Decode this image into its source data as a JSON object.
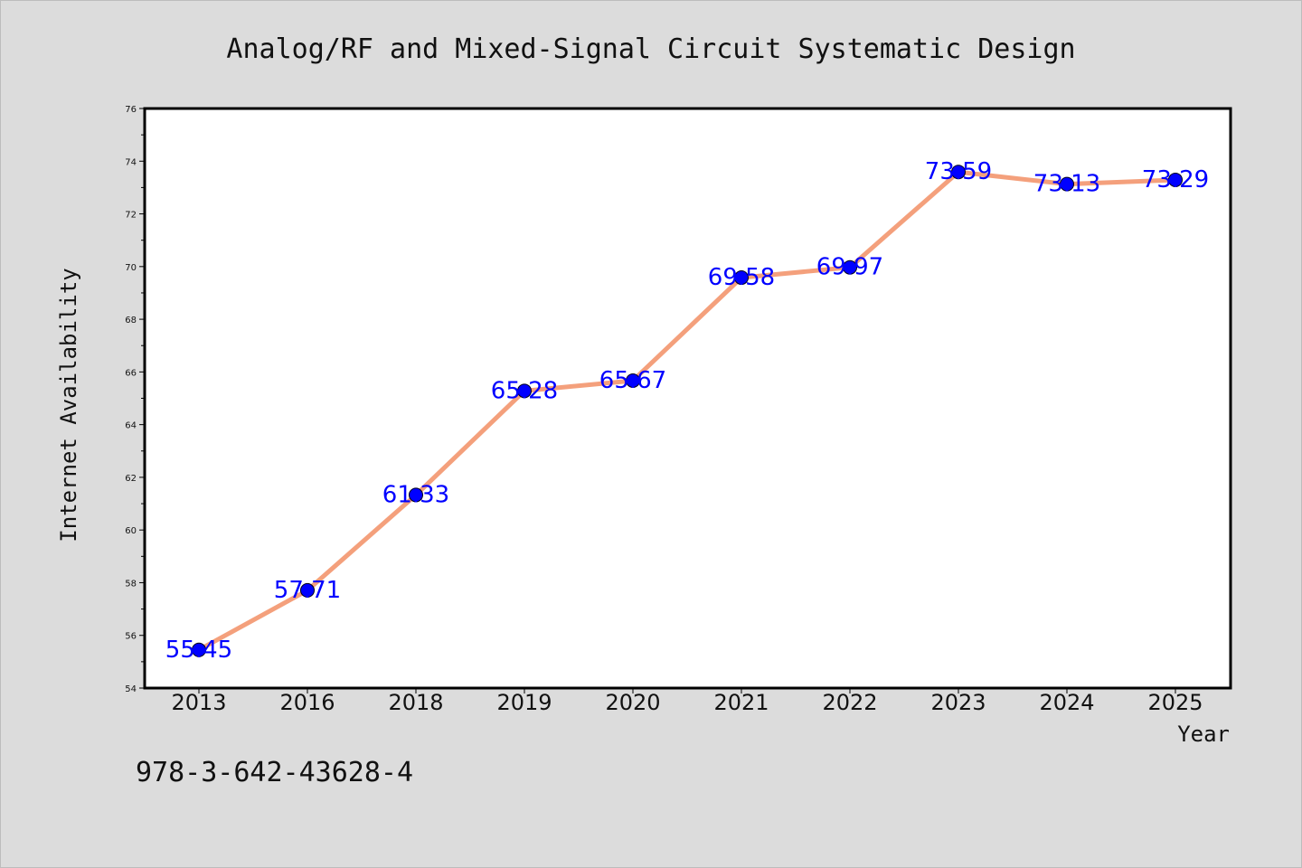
{
  "chart_data": {
    "type": "line",
    "title": "Analog/RF and Mixed-Signal Circuit Systematic Design",
    "xlabel": "Year",
    "ylabel": "Internet Availability",
    "categories": [
      "2013",
      "2016",
      "2018",
      "2019",
      "2020",
      "2021",
      "2022",
      "2023",
      "2024",
      "2025"
    ],
    "series": [
      {
        "values": [
          55.45,
          57.71,
          61.33,
          65.28,
          65.67,
          69.58,
          69.97,
          73.59,
          73.13,
          73.29
        ],
        "data_labels": [
          "55.45",
          "57.71",
          "61.33",
          "65.28",
          "65.67",
          "69.58",
          "69.97",
          "73.59",
          "73.13",
          "73.29"
        ]
      }
    ],
    "ylim": [
      54,
      76
    ],
    "yticks": [
      "54",
      "56",
      "58",
      "60",
      "62",
      "64",
      "66",
      "68",
      "70",
      "72",
      "74",
      "76"
    ],
    "grid": false,
    "legend": "none",
    "colors": {
      "line": "#f4a07c",
      "marker": "#0000ff",
      "data_label": "#0000ff",
      "background": "#dcdcdc",
      "plot_area": "#ffffff"
    }
  },
  "footnote": "978-3-642-43628-4"
}
